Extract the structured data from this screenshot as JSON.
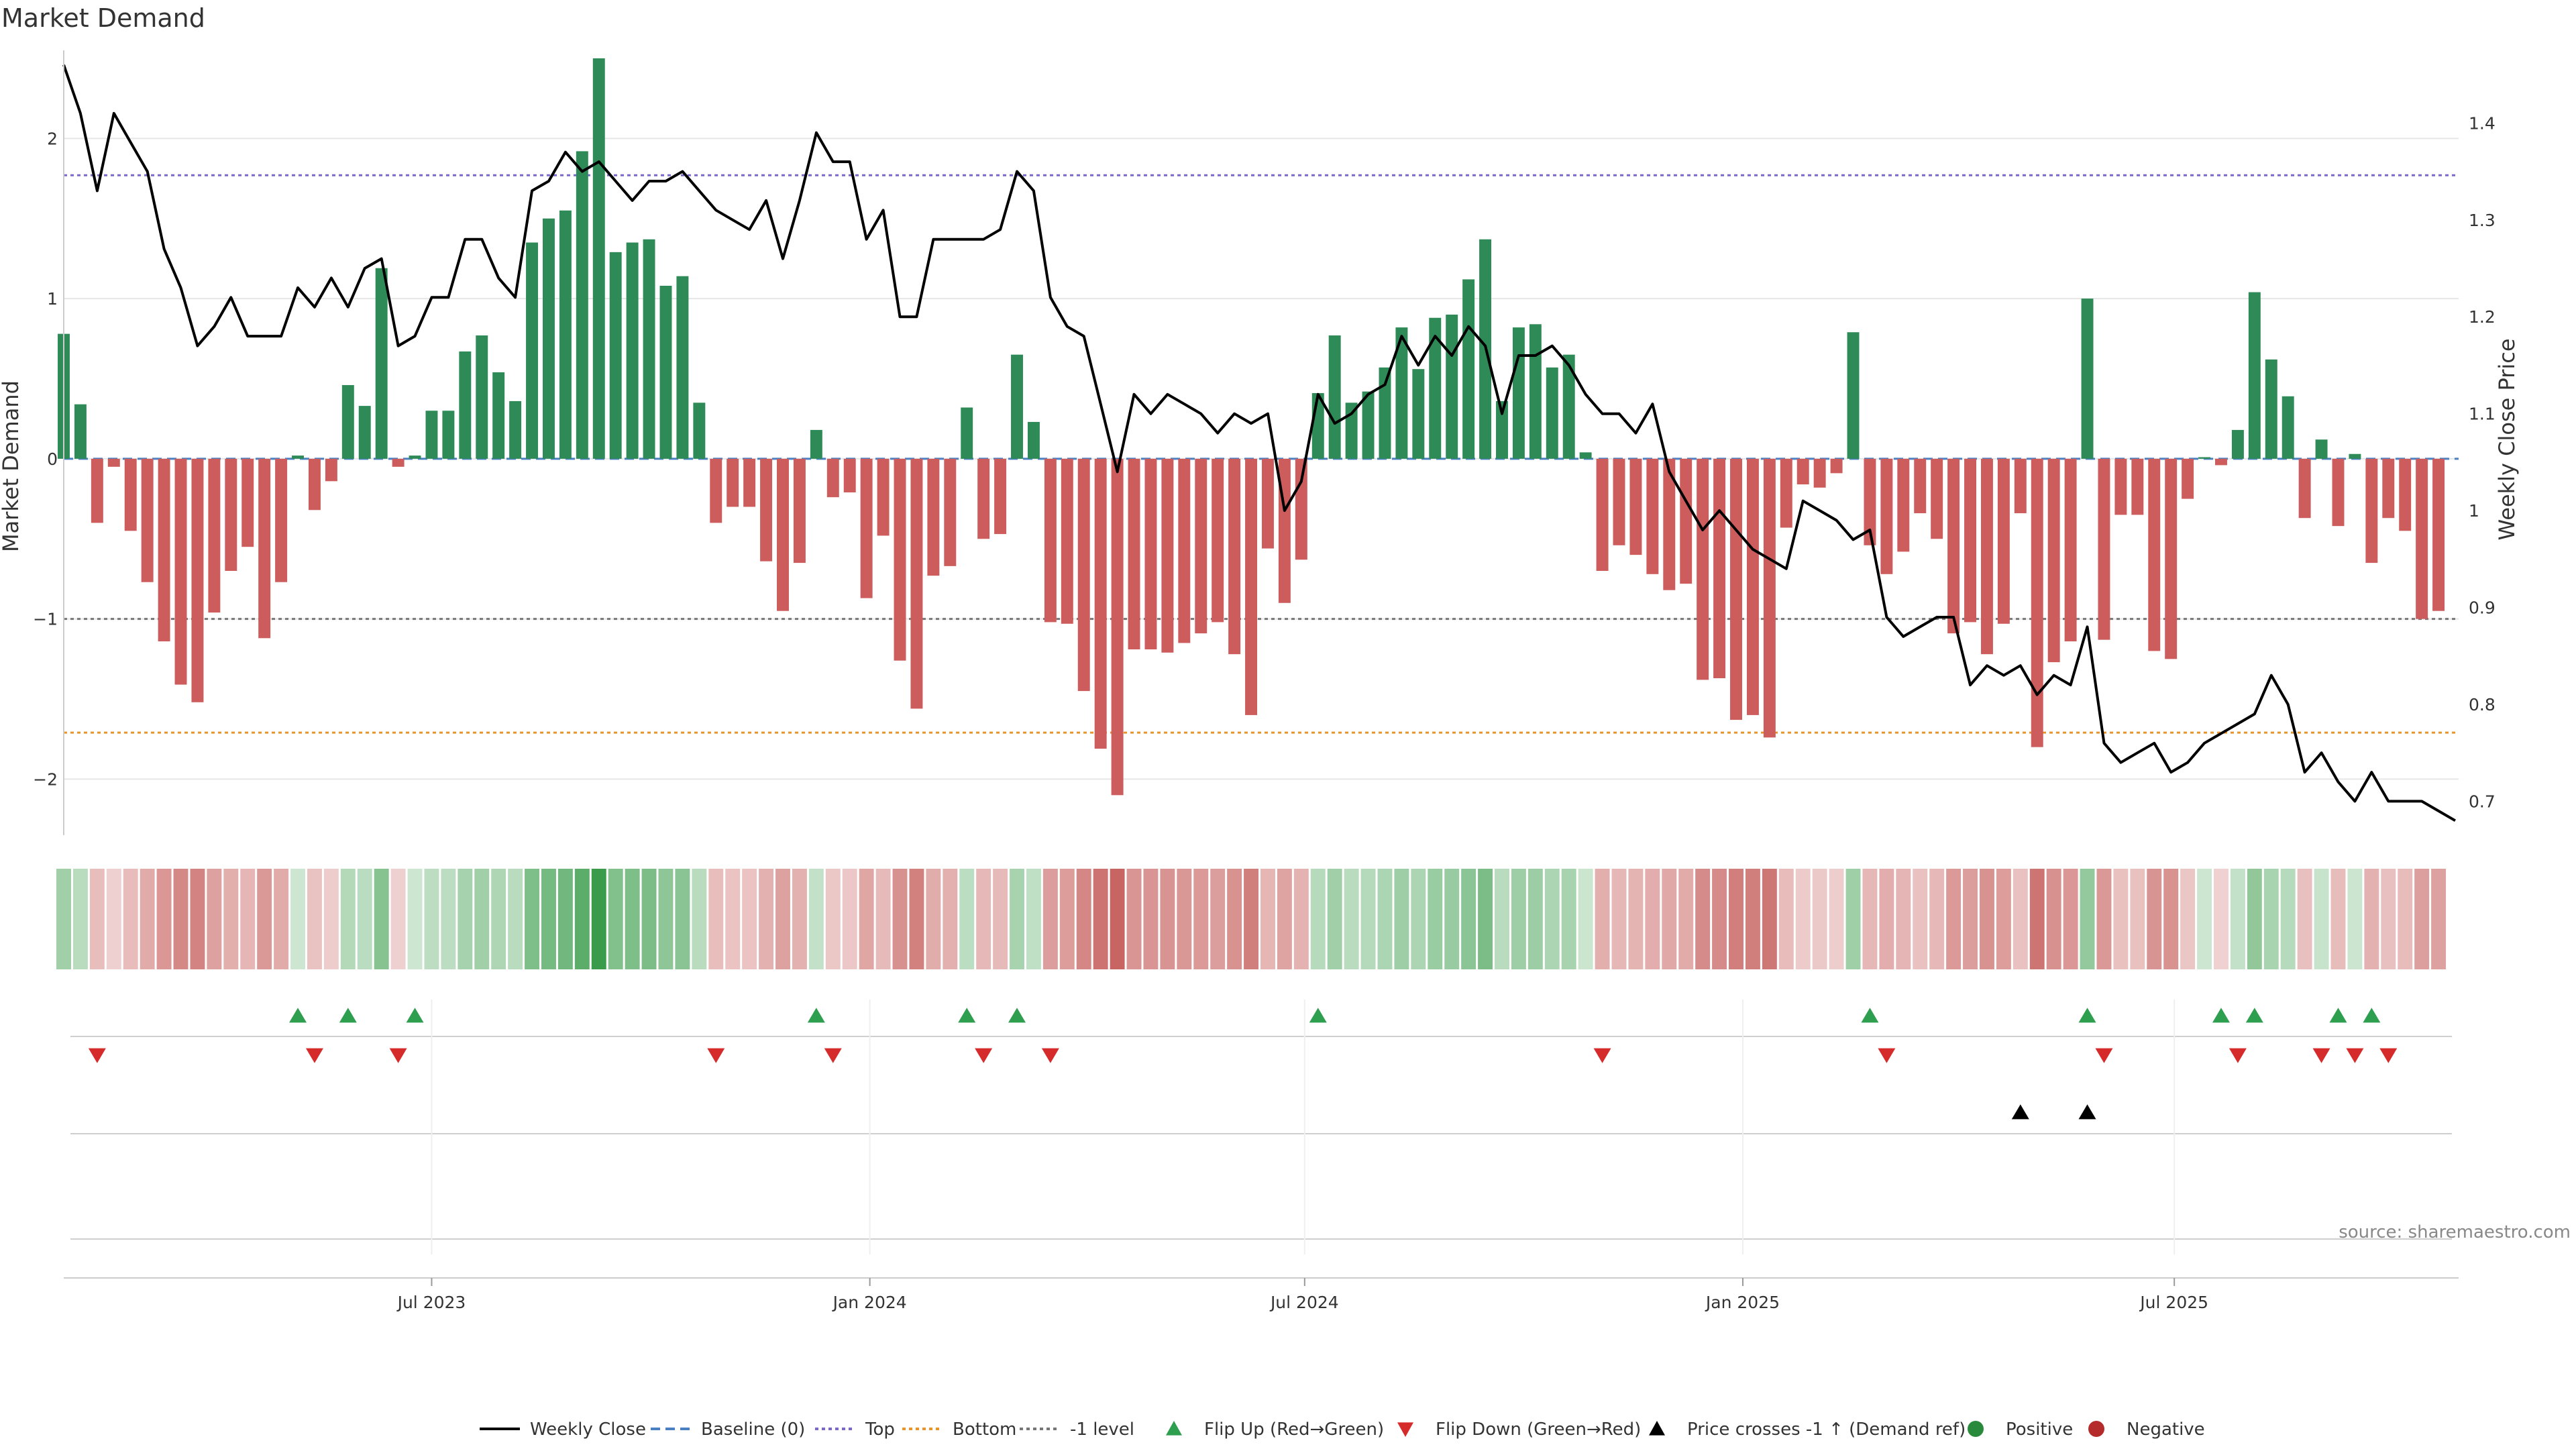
{
  "chart_data": {
    "type": "bar",
    "title": "Market Demand",
    "ylabel_left": "Market Demand",
    "ylabel_right": "Weekly Close Price",
    "source": "source: sharemaestro.com",
    "ylim_left": [
      -2.35,
      2.55
    ],
    "ylim_right": [
      0.665,
      1.475
    ],
    "yticks_left": [
      {
        "value": 2,
        "label": "2"
      },
      {
        "value": 1,
        "label": "1"
      },
      {
        "value": 0,
        "label": "0"
      },
      {
        "value": -1,
        "label": "−1"
      },
      {
        "value": -2,
        "label": "−2"
      }
    ],
    "yticks_right": [
      {
        "value": 1.4,
        "label": "1.4"
      },
      {
        "value": 1.3,
        "label": "1.3"
      },
      {
        "value": 1.2,
        "label": "1.2"
      },
      {
        "value": 1.1,
        "label": "1.1"
      },
      {
        "value": 1.0,
        "label": "1"
      },
      {
        "value": 0.9,
        "label": "0.9"
      },
      {
        "value": 0.8,
        "label": "0.8"
      },
      {
        "value": 0.7,
        "label": "0.7"
      }
    ],
    "x_start_week": 0,
    "x_end_week": 143,
    "xticks": [
      {
        "week": 22,
        "label": "Jul 2023"
      },
      {
        "week": 48.2,
        "label": "Jan 2024"
      },
      {
        "week": 74.2,
        "label": "Jul 2024"
      },
      {
        "week": 100.4,
        "label": "Jan 2025"
      },
      {
        "week": 126.2,
        "label": "Jul 2025"
      }
    ],
    "reference_lines": [
      {
        "name": "Top",
        "value": 1.77,
        "color": "#7b68c8"
      },
      {
        "name": "Bottom",
        "value": -1.71,
        "color": "#e8962c"
      },
      {
        "name": "-1 level",
        "value": -1.0,
        "color": "#777777"
      },
      {
        "name": "Baseline (0)",
        "value": 0,
        "color": "#4a7fc1"
      }
    ],
    "demand": [
      0.78,
      0.34,
      -0.4,
      -0.05,
      -0.45,
      -0.77,
      -1.14,
      -1.41,
      -1.52,
      -0.96,
      -0.7,
      -0.55,
      -1.12,
      -0.77,
      0.02,
      -0.32,
      -0.14,
      0.46,
      0.33,
      1.19,
      -0.05,
      0.02,
      0.3,
      0.3,
      0.67,
      0.77,
      0.54,
      0.36,
      1.35,
      1.5,
      1.55,
      1.92,
      2.5,
      1.29,
      1.35,
      1.37,
      1.08,
      1.14,
      0.35,
      -0.4,
      -0.3,
      -0.3,
      -0.64,
      -0.95,
      -0.65,
      0.18,
      -0.24,
      -0.21,
      -0.87,
      -0.48,
      -1.26,
      -1.56,
      -0.73,
      -0.67,
      0.32,
      -0.5,
      -0.47,
      0.65,
      0.23,
      -1.02,
      -1.03,
      -1.45,
      -1.81,
      -2.1,
      -1.19,
      -1.19,
      -1.21,
      -1.15,
      -1.09,
      -1.02,
      -1.22,
      -1.6,
      -0.56,
      -0.9,
      -0.63,
      0.41,
      0.77,
      0.35,
      0.42,
      0.57,
      0.82,
      0.56,
      0.88,
      0.9,
      1.12,
      1.37,
      0.36,
      0.82,
      0.84,
      0.57,
      0.65,
      0.04,
      -0.7,
      -0.54,
      -0.6,
      -0.72,
      -0.82,
      -0.78,
      -1.38,
      -1.37,
      -1.63,
      -1.6,
      -1.74,
      -0.43,
      -0.16,
      -0.18,
      -0.09,
      0.79,
      -0.54,
      -0.72,
      -0.58,
      -0.34,
      -0.5,
      -1.09,
      -1.02,
      -1.22,
      -1.03,
      -0.34,
      -1.8,
      -1.27,
      -1.14,
      1.0,
      -1.13,
      -0.35,
      -0.35,
      -1.2,
      -1.25,
      -0.25,
      0.01,
      -0.04,
      0.18,
      1.04,
      0.62,
      0.39,
      -0.37,
      0.12,
      -0.42,
      0.03,
      -0.65,
      -0.37,
      -0.45,
      -1.0,
      -0.95
    ],
    "price": [
      1.46,
      1.41,
      1.33,
      1.41,
      1.38,
      1.35,
      1.27,
      1.23,
      1.17,
      1.19,
      1.22,
      1.18,
      1.18,
      1.18,
      1.23,
      1.21,
      1.24,
      1.21,
      1.25,
      1.26,
      1.17,
      1.18,
      1.22,
      1.22,
      1.28,
      1.28,
      1.24,
      1.22,
      1.33,
      1.34,
      1.37,
      1.35,
      1.36,
      1.34,
      1.32,
      1.34,
      1.34,
      1.35,
      1.33,
      1.31,
      1.3,
      1.29,
      1.32,
      1.26,
      1.32,
      1.39,
      1.36,
      1.36,
      1.28,
      1.31,
      1.2,
      1.2,
      1.28,
      1.28,
      1.28,
      1.28,
      1.29,
      1.35,
      1.33,
      1.22,
      1.19,
      1.18,
      1.11,
      1.04,
      1.12,
      1.1,
      1.12,
      1.11,
      1.1,
      1.08,
      1.1,
      1.09,
      1.1,
      1.0,
      1.03,
      1.12,
      1.09,
      1.1,
      1.12,
      1.13,
      1.18,
      1.15,
      1.18,
      1.16,
      1.19,
      1.17,
      1.1,
      1.16,
      1.16,
      1.17,
      1.15,
      1.12,
      1.1,
      1.1,
      1.08,
      1.11,
      1.04,
      1.01,
      0.98,
      1.0,
      0.98,
      0.96,
      0.95,
      0.94,
      1.01,
      1.0,
      0.99,
      0.97,
      0.98,
      0.89,
      0.87,
      0.88,
      0.89,
      0.89,
      0.82,
      0.84,
      0.83,
      0.84,
      0.81,
      0.83,
      0.82,
      0.88,
      0.76,
      0.74,
      0.75,
      0.76,
      0.73,
      0.74,
      0.76,
      0.77,
      0.78,
      0.79,
      0.83,
      0.8,
      0.73,
      0.75,
      0.72,
      0.7,
      0.73,
      0.7,
      0.7,
      0.7,
      0.69,
      0.68
    ],
    "flip_up_weeks": [
      14,
      17,
      21,
      45,
      54,
      57,
      75,
      108,
      121,
      129,
      131,
      136,
      138
    ],
    "flip_down_weeks": [
      2,
      15,
      20,
      39,
      46,
      55,
      59,
      92,
      109,
      122,
      130,
      135,
      137,
      139
    ],
    "price_cross_weeks": [
      117,
      121
    ],
    "legend": [
      {
        "label": "Weekly Close",
        "kind": "line",
        "color": "#000000"
      },
      {
        "label": "Baseline (0)",
        "kind": "dash",
        "color": "#4a7fc1"
      },
      {
        "label": "Top",
        "kind": "dot",
        "color": "#7b68c8"
      },
      {
        "label": "Bottom",
        "kind": "dot",
        "color": "#e8962c"
      },
      {
        "label": "-1 level",
        "kind": "dot",
        "color": "#777777"
      },
      {
        "label": "Flip Up (Red→Green)",
        "kind": "tri-up",
        "color": "#2e9e4f"
      },
      {
        "label": "Flip Down (Green→Red)",
        "kind": "tri-down",
        "color": "#d62b2b"
      },
      {
        "label": "Price crosses -1 ↑ (Demand ref)",
        "kind": "tri-up",
        "color": "#000000"
      },
      {
        "label": "Positive",
        "kind": "circle",
        "color": "#2a8a3c"
      },
      {
        "label": "Negative",
        "kind": "circle",
        "color": "#b52a2a"
      }
    ],
    "colors": {
      "positive_bar": "#2e8b57",
      "negative_bar": "#cd5c5c",
      "strip_positive": "#3a9c4a",
      "strip_negative": "#c0504d",
      "grid": "#e6e6e6"
    }
  }
}
